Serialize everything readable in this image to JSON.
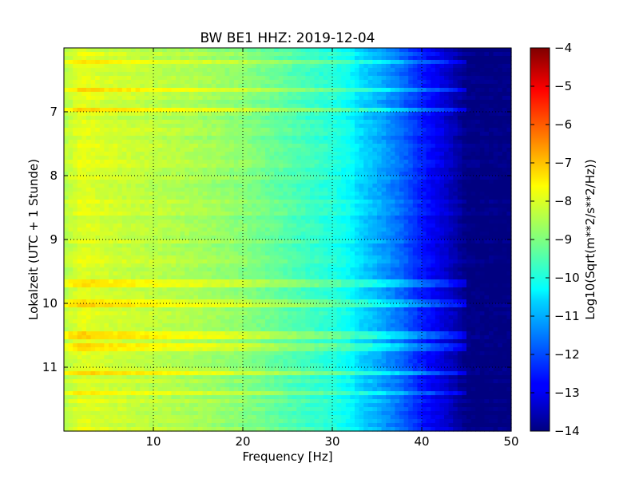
{
  "chart_data": {
    "type": "heatmap",
    "title": "BW BE1 HHZ: 2019-12-04",
    "xlabel": "Frequency [Hz]",
    "ylabel": "Lokalzeit (UTC + 1 Stunde)",
    "colorbar_label": "Log10(Sqrt(m**2/s**2/Hz))",
    "colormap": "jet",
    "xlim": [
      0,
      50
    ],
    "ylim": [
      12.0,
      6.0
    ],
    "clim": [
      -14,
      -4
    ],
    "grid": true,
    "x_ticks": [
      10,
      20,
      30,
      40,
      50
    ],
    "x_tick_labels": [
      "10",
      "20",
      "30",
      "40",
      "50"
    ],
    "y_ticks": [
      7,
      8,
      9,
      10,
      11
    ],
    "y_tick_labels": [
      "7",
      "8",
      "9",
      "10",
      "11"
    ],
    "colorbar_ticks": [
      -4,
      -5,
      -6,
      -7,
      -8,
      -9,
      -10,
      -11,
      -12,
      -13,
      -14
    ],
    "colorbar_tick_labels": [
      "−4",
      "−5",
      "−6",
      "−7",
      "−8",
      "−9",
      "−10",
      "−11",
      "−12",
      "−13",
      "−14"
    ],
    "spectrum_profile": {
      "frequency_hz": [
        0,
        2,
        5,
        10,
        15,
        20,
        25,
        30,
        32,
        33,
        35,
        38,
        40,
        42,
        44,
        45,
        50
      ],
      "log10_amplitude": [
        -8.5,
        -8.0,
        -8.2,
        -8.4,
        -8.6,
        -8.9,
        -9.4,
        -9.9,
        -10.2,
        -10.6,
        -11.0,
        -11.8,
        -12.5,
        -13.0,
        -13.6,
        -14.0,
        -14.0
      ]
    },
    "bright_bands_hours": [
      6.23,
      6.65,
      6.95,
      9.7,
      10.0,
      10.5,
      10.7,
      11.1,
      11.4
    ]
  }
}
